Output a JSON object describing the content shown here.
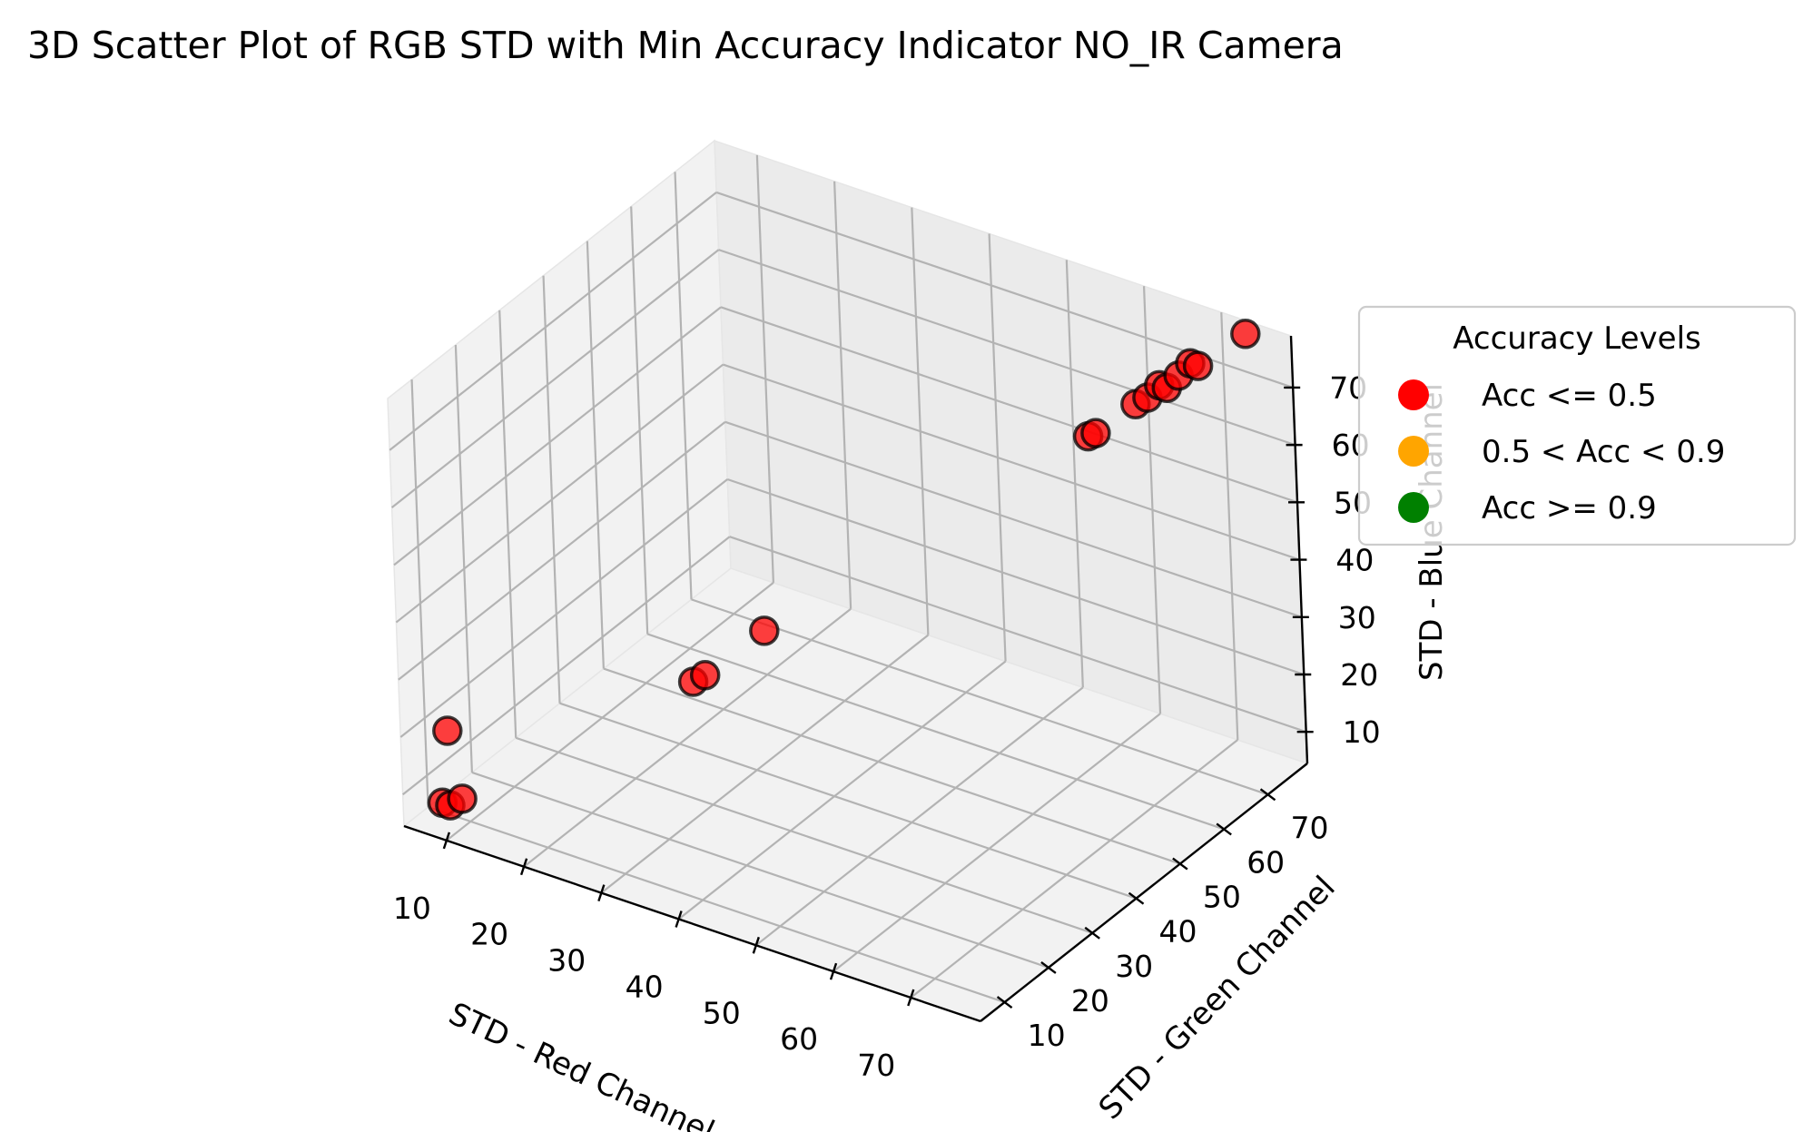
{
  "chart_data": {
    "type": "scatter",
    "title": "3D Scatter Plot of RGB STD with Min Accuracy Indicator NO_IR Camera",
    "xlabel": "STD - Red Channel",
    "ylabel": "STD - Green Channel",
    "zlabel": "STD - Blue Channel",
    "xticks": [
      10,
      20,
      30,
      40,
      50,
      60,
      70
    ],
    "yticks": [
      10,
      20,
      30,
      40,
      50,
      60,
      70
    ],
    "zticks": [
      10,
      20,
      30,
      40,
      50,
      60,
      70
    ],
    "grid": true,
    "legend": {
      "title": "Accuracy Levels",
      "placement": "right",
      "entries": [
        {
          "label": "Acc <= 0.5",
          "color": "#ff0000"
        },
        {
          "label": "0.5 < Acc < 0.9",
          "color": "#ffa500"
        },
        {
          "label": "Acc >= 0.9",
          "color": "#008000"
        }
      ]
    },
    "points": [
      {
        "x": 7,
        "y": 9,
        "z": 7,
        "color": "#ff0000"
      },
      {
        "x": 8,
        "y": 9,
        "z": 7,
        "color": "#ff0000"
      },
      {
        "x": 9,
        "y": 10,
        "z": 8,
        "color": "#ff0000"
      },
      {
        "x": 8,
        "y": 9,
        "z": 20,
        "color": "#ff0000"
      },
      {
        "x": 28,
        "y": 30,
        "z": 25,
        "color": "#ff0000"
      },
      {
        "x": 29,
        "y": 31,
        "z": 26,
        "color": "#ff0000"
      },
      {
        "x": 34,
        "y": 36,
        "z": 33,
        "color": "#ff0000"
      },
      {
        "x": 62,
        "y": 62,
        "z": 64,
        "color": "#ff0000"
      },
      {
        "x": 63,
        "y": 62,
        "z": 65,
        "color": "#ff0000"
      },
      {
        "x": 66,
        "y": 66,
        "z": 69,
        "color": "#ff0000"
      },
      {
        "x": 67,
        "y": 67,
        "z": 70,
        "color": "#ff0000"
      },
      {
        "x": 68,
        "y": 68,
        "z": 72,
        "color": "#ff0000"
      },
      {
        "x": 69,
        "y": 68,
        "z": 72,
        "color": "#ff0000"
      },
      {
        "x": 70,
        "y": 69,
        "z": 74,
        "color": "#ff0000"
      },
      {
        "x": 71,
        "y": 70,
        "z": 76,
        "color": "#ff0000"
      },
      {
        "x": 72,
        "y": 70,
        "z": 76,
        "color": "#ff0000"
      },
      {
        "x": 76,
        "y": 74,
        "z": 81,
        "color": "#ff0000"
      }
    ]
  }
}
